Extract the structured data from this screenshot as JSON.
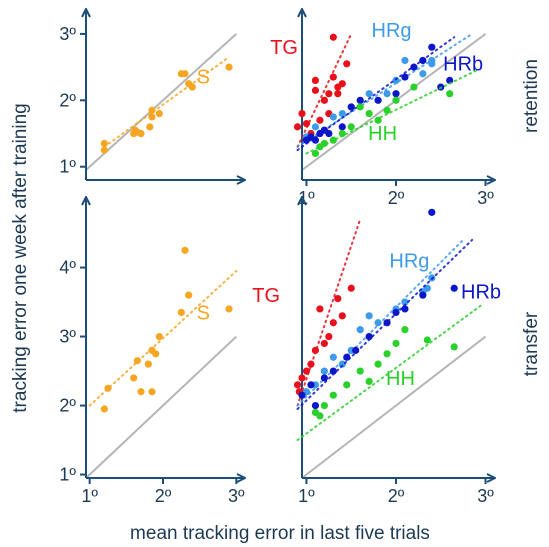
{
  "colors": {
    "axis": "#1d4e79",
    "identity": "#b5b5b5",
    "S": "#f5a623",
    "TG": "#e8111b",
    "HRg": "#3d9be9",
    "HRb": "#0b16c9",
    "HH": "#2ad12a"
  },
  "figure": {
    "xlabel": "mean tracking error in last five trials",
    "ylabel": "tracking error one week after training",
    "row_labels": [
      "retention",
      "transfer"
    ]
  },
  "chart_data": [
    {
      "type": "scatter",
      "panel": "retention-S",
      "xlim": [
        0.95,
        3.05
      ],
      "ylim": [
        0.8,
        3.3
      ],
      "xticks": [],
      "yticks": [
        "1º",
        "2º",
        "3º"
      ],
      "ytick_values": [
        1,
        2,
        3
      ],
      "series": [
        {
          "name": "S",
          "color_key": "S",
          "x": [
            1.2,
            1.2,
            1.6,
            1.62,
            1.65,
            1.7,
            1.82,
            1.85,
            1.85,
            1.95,
            2.25,
            2.3,
            2.35,
            2.4,
            2.9
          ],
          "y": [
            1.25,
            1.35,
            1.5,
            1.55,
            1.52,
            1.5,
            1.6,
            1.85,
            1.75,
            1.8,
            2.4,
            2.4,
            2.25,
            2.2,
            2.5
          ],
          "fit": [
            [
              1.2,
              1.3
            ],
            [
              2.9,
              2.65
            ]
          ]
        }
      ]
    },
    {
      "type": "scatter",
      "panel": "retention-groups",
      "xlim": [
        0.95,
        3.05
      ],
      "ylim": [
        0.8,
        3.3
      ],
      "xticks": [
        "1º",
        "2º",
        "3º"
      ],
      "xtick_values": [
        1,
        2,
        3
      ],
      "yticks": [],
      "series": [
        {
          "name": "TG",
          "color_key": "TG",
          "x": [
            0.9,
            0.95,
            1.0,
            1.05,
            1.1,
            1.1,
            1.15,
            1.2,
            1.25,
            1.25,
            1.3,
            1.35,
            1.35,
            1.4,
            1.45,
            1.3
          ],
          "y": [
            1.6,
            1.8,
            1.65,
            1.5,
            2.15,
            2.3,
            1.7,
            2.0,
            1.8,
            2.1,
            2.35,
            2.2,
            2.1,
            2.25,
            2.55,
            2.95
          ],
          "fit": [
            [
              0.9,
              1.3
            ],
            [
              1.5,
              3.0
            ]
          ]
        },
        {
          "name": "HRg",
          "color_key": "HRg",
          "x": [
            1.0,
            1.1,
            1.2,
            1.3,
            1.4,
            1.5,
            1.7,
            1.9,
            2.0,
            2.1,
            2.3,
            2.4,
            2.4
          ],
          "y": [
            1.45,
            1.6,
            1.55,
            1.75,
            1.8,
            1.9,
            2.1,
            2.1,
            2.3,
            2.6,
            2.4,
            2.55,
            2.6
          ],
          "fit": [
            [
              0.9,
              1.3
            ],
            [
              2.85,
              3.0
            ]
          ]
        },
        {
          "name": "HRb",
          "color_key": "HRb",
          "x": [
            1.0,
            1.05,
            1.1,
            1.15,
            1.2,
            1.25,
            1.4,
            1.5,
            1.6,
            1.8,
            2.0,
            2.1,
            2.2,
            2.3,
            2.4,
            2.5,
            2.6
          ],
          "y": [
            1.4,
            1.45,
            1.4,
            1.5,
            1.55,
            1.5,
            1.6,
            1.9,
            2.0,
            2.0,
            2.1,
            2.35,
            2.5,
            2.6,
            2.8,
            2.2,
            2.3
          ],
          "fit": [
            [
              0.9,
              1.25
            ],
            [
              2.65,
              2.95
            ]
          ]
        },
        {
          "name": "HH",
          "color_key": "HH",
          "x": [
            1.1,
            1.15,
            1.2,
            1.3,
            1.4,
            1.5,
            1.6,
            1.7,
            1.8,
            1.9,
            2.0,
            2.2,
            2.6
          ],
          "y": [
            1.2,
            1.3,
            1.35,
            1.4,
            1.5,
            1.6,
            1.9,
            1.8,
            1.7,
            1.85,
            2.0,
            2.2,
            2.1
          ],
          "fit": [
            [
              1.0,
              1.2
            ],
            [
              2.9,
              2.45
            ]
          ]
        }
      ]
    },
    {
      "type": "scatter",
      "panel": "transfer-S",
      "xlim": [
        0.95,
        3.05
      ],
      "ylim": [
        0.95,
        4.95
      ],
      "xticks": [
        "1º",
        "2º",
        "3º"
      ],
      "xtick_values": [
        1,
        2,
        3
      ],
      "yticks": [
        "1º",
        "2º",
        "3º",
        "4º"
      ],
      "ytick_values": [
        1,
        2,
        3,
        4
      ],
      "series": [
        {
          "name": "S",
          "color_key": "S",
          "x": [
            1.2,
            1.25,
            1.6,
            1.65,
            1.7,
            1.8,
            1.85,
            1.9,
            1.95,
            2.25,
            2.3,
            2.35,
            2.9,
            1.85
          ],
          "y": [
            1.95,
            2.25,
            2.4,
            2.65,
            2.2,
            2.6,
            2.8,
            2.75,
            3.0,
            3.35,
            4.25,
            3.6,
            3.4,
            2.2
          ],
          "fit": [
            [
              1.0,
              2.0
            ],
            [
              3.0,
              3.95
            ]
          ]
        }
      ]
    },
    {
      "type": "scatter",
      "panel": "transfer-groups",
      "xlim": [
        0.95,
        3.05
      ],
      "ylim": [
        0.95,
        4.95
      ],
      "xticks": [
        "1º",
        "2º",
        "3º"
      ],
      "xtick_values": [
        1,
        2,
        3
      ],
      "yticks": [],
      "series": [
        {
          "name": "TG",
          "color_key": "TG",
          "x": [
            0.9,
            0.92,
            0.95,
            1.0,
            1.05,
            1.1,
            1.15,
            1.2,
            1.25,
            1.3,
            1.35,
            1.4,
            1.5
          ],
          "y": [
            2.3,
            2.2,
            2.4,
            2.5,
            2.6,
            2.8,
            3.4,
            2.9,
            3.0,
            3.2,
            3.55,
            3.3,
            3.7
          ],
          "fit": [
            [
              0.9,
              2.0
            ],
            [
              1.6,
              4.7
            ]
          ]
        },
        {
          "name": "HRg",
          "color_key": "HRg",
          "x": [
            1.0,
            1.1,
            1.2,
            1.3,
            1.4,
            1.5,
            1.6,
            1.7,
            1.8,
            2.0,
            2.1,
            2.3,
            2.35,
            2.4
          ],
          "y": [
            2.2,
            2.3,
            2.5,
            2.7,
            2.6,
            2.8,
            3.1,
            3.3,
            3.2,
            3.4,
            3.5,
            3.65,
            3.7,
            3.85
          ],
          "fit": [
            [
              0.9,
              2.0
            ],
            [
              2.75,
              4.4
            ]
          ]
        },
        {
          "name": "HRb",
          "color_key": "HRb",
          "x": [
            0.95,
            1.05,
            1.1,
            1.2,
            1.3,
            1.45,
            1.55,
            1.7,
            1.9,
            2.0,
            2.1,
            2.3,
            2.4,
            2.65
          ],
          "y": [
            2.15,
            2.3,
            2.0,
            2.4,
            2.5,
            2.7,
            2.8,
            3.0,
            3.2,
            3.35,
            3.4,
            3.6,
            4.8,
            3.7
          ],
          "fit": [
            [
              0.9,
              1.95
            ],
            [
              2.85,
              4.4
            ]
          ]
        },
        {
          "name": "HH",
          "color_key": "HH",
          "x": [
            1.1,
            1.15,
            1.2,
            1.3,
            1.45,
            1.6,
            1.7,
            1.8,
            1.9,
            2.0,
            2.1,
            2.35,
            2.65
          ],
          "y": [
            1.9,
            1.85,
            2.0,
            2.15,
            2.3,
            2.5,
            2.35,
            2.6,
            2.75,
            2.9,
            3.1,
            2.95,
            2.85
          ],
          "fit": [
            [
              0.9,
              1.5
            ],
            [
              2.95,
              3.45
            ]
          ]
        }
      ]
    }
  ]
}
